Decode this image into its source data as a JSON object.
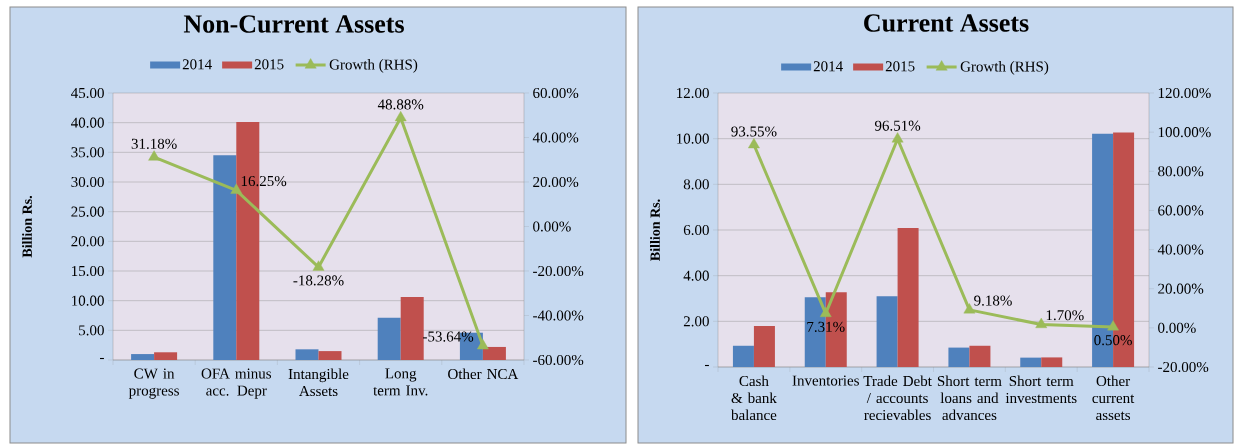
{
  "chart_data": [
    {
      "type": "bar",
      "title": "Non-Current Assets",
      "ylabel": "Billion Rs.",
      "categories": [
        "CW in progress",
        "OFA minus acc. Depr",
        "Intangible Assets",
        "Long term Inv.",
        "Other NCA"
      ],
      "series": [
        {
          "name": "2014",
          "color": "#4f81bd",
          "values": [
            1.0,
            34.5,
            1.8,
            7.1,
            4.6
          ]
        },
        {
          "name": "2015",
          "color": "#c0504d",
          "values": [
            1.3,
            40.1,
            1.5,
            10.6,
            2.2
          ]
        },
        {
          "name": "Growth (RHS)",
          "type": "line",
          "axis": "y2",
          "marker": "triangle",
          "color": "#9bbb59",
          "values": [
            31.18,
            16.25,
            -18.28,
            48.88,
            -53.64
          ],
          "value_labels": [
            "31.18%",
            "16.25%",
            "-18.28%",
            "48.88%",
            "-53.64%"
          ]
        }
      ],
      "ylim": [
        0,
        45
      ],
      "yticks": [
        {
          "value": 0,
          "label": "-"
        },
        {
          "value": 5,
          "label": "5.00"
        },
        {
          "value": 10,
          "label": "10.00"
        },
        {
          "value": 15,
          "label": "15.00"
        },
        {
          "value": 20,
          "label": "20.00"
        },
        {
          "value": 25,
          "label": "25.00"
        },
        {
          "value": 30,
          "label": "30.00"
        },
        {
          "value": 35,
          "label": "35.00"
        },
        {
          "value": 40,
          "label": "40.00"
        },
        {
          "value": 45,
          "label": "45.00"
        }
      ],
      "y2lim": [
        -60,
        60
      ],
      "y2ticks": [
        {
          "value": -60,
          "label": "-60.00%"
        },
        {
          "value": -40,
          "label": "-40.00%"
        },
        {
          "value": -20,
          "label": "-20.00%"
        },
        {
          "value": 0,
          "label": "0.00%"
        },
        {
          "value": 20,
          "label": "20.00%"
        },
        {
          "value": 40,
          "label": "40.00%"
        },
        {
          "value": 60,
          "label": "60.00%"
        }
      ],
      "grid": "y",
      "legend": "top"
    },
    {
      "type": "bar",
      "title": "Current Assets",
      "ylabel": "Billion Rs.",
      "categories": [
        "Cash & bank balance",
        "Inventories",
        "Trade Debt / accounts recievables",
        "Short term loans and advances",
        "Short term investments",
        "Other current assets"
      ],
      "series": [
        {
          "name": "2014",
          "color": "#4f81bd",
          "values": [
            0.93,
            3.05,
            3.1,
            0.85,
            0.41,
            10.22
          ]
        },
        {
          "name": "2015",
          "color": "#c0504d",
          "values": [
            1.8,
            3.27,
            6.09,
            0.93,
            0.42,
            10.27
          ]
        },
        {
          "name": "Growth (RHS)",
          "type": "line",
          "axis": "y2",
          "marker": "triangle",
          "color": "#9bbb59",
          "values": [
            93.55,
            7.31,
            96.51,
            9.18,
            1.7,
            0.5
          ],
          "value_labels": [
            "93.55%",
            "7.31%",
            "96.51%",
            "9.18%",
            "1.70%",
            "0.50%"
          ]
        }
      ],
      "ylim": [
        0,
        12
      ],
      "yticks": [
        {
          "value": 0,
          "label": "-"
        },
        {
          "value": 2,
          "label": "2.00"
        },
        {
          "value": 4,
          "label": "4.00"
        },
        {
          "value": 6,
          "label": "6.00"
        },
        {
          "value": 8,
          "label": "8.00"
        },
        {
          "value": 10,
          "label": "10.00"
        },
        {
          "value": 12,
          "label": "12.00"
        }
      ],
      "y2lim": [
        -20,
        120
      ],
      "y2ticks": [
        {
          "value": -20,
          "label": "-20.00%"
        },
        {
          "value": 0,
          "label": "0.00%"
        },
        {
          "value": 20,
          "label": "20.00%"
        },
        {
          "value": 40,
          "label": "40.00%"
        },
        {
          "value": 60,
          "label": "60.00%"
        },
        {
          "value": 80,
          "label": "80.00%"
        },
        {
          "value": 100,
          "label": "100.00%"
        },
        {
          "value": 120,
          "label": "120.00%"
        }
      ],
      "grid": "y",
      "legend": "top"
    }
  ]
}
